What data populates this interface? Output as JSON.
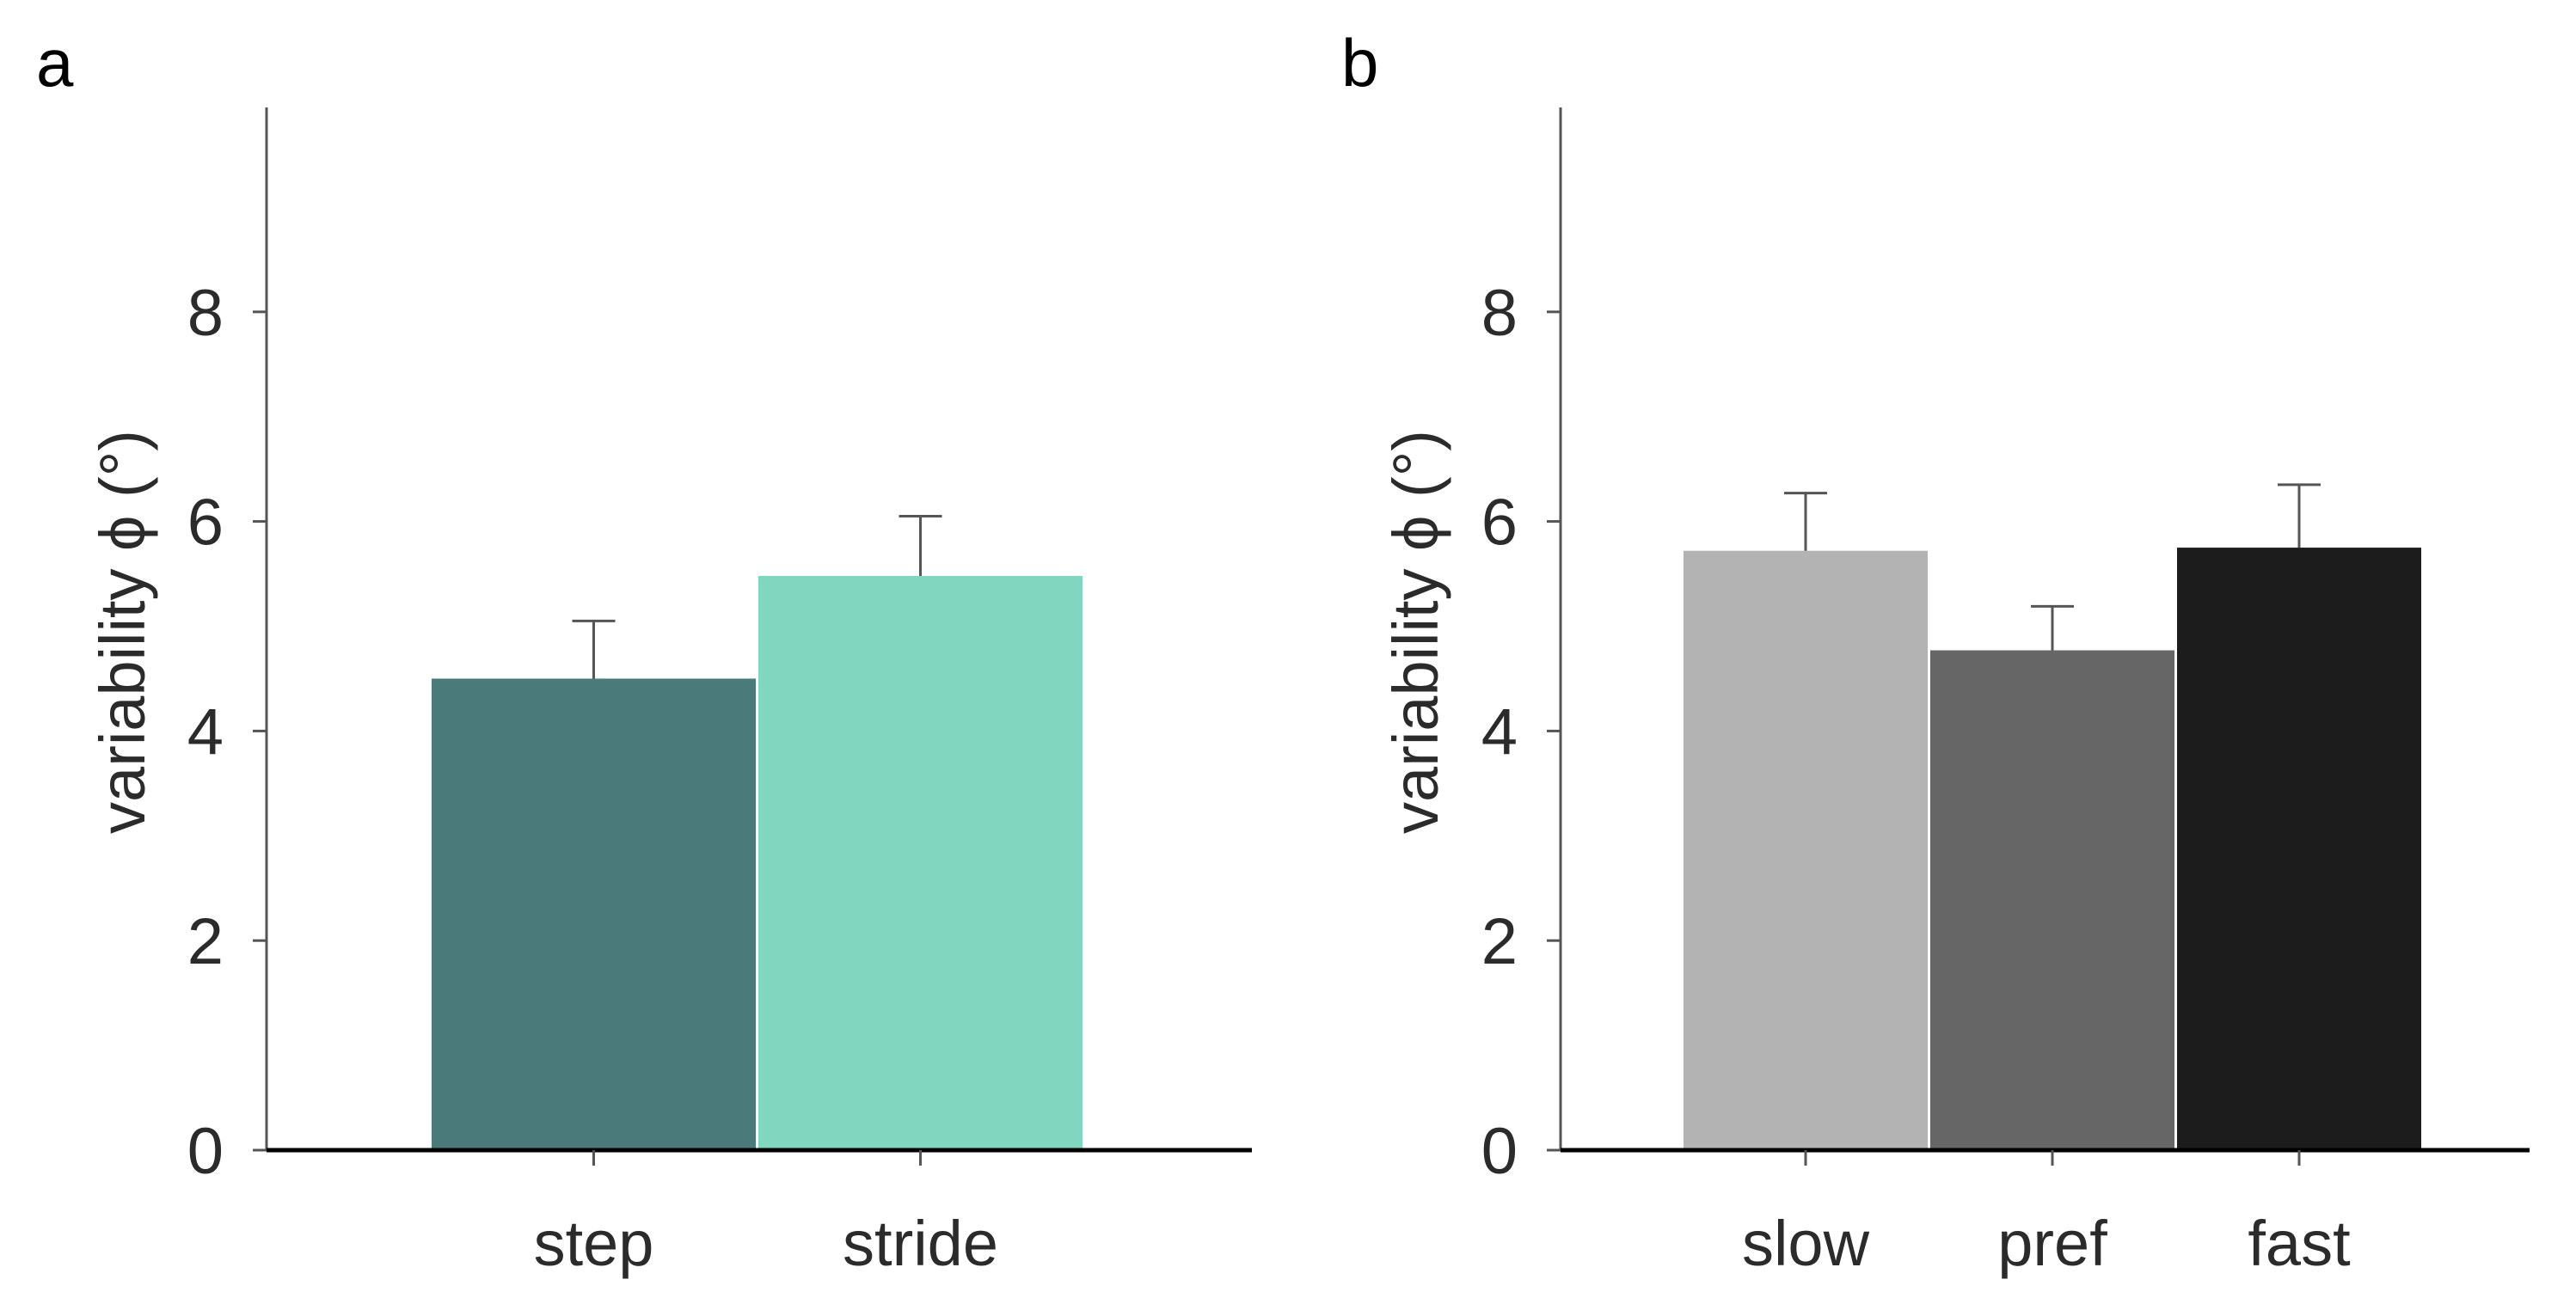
{
  "panels": [
    {
      "panel_label": "a",
      "chart_data": {
        "type": "bar",
        "categories": [
          "step",
          "stride"
        ],
        "values": [
          4.5,
          5.48
        ],
        "errors": [
          0.55,
          0.57
        ],
        "bar_colors": [
          "#4a7a7a",
          "#80d6bf"
        ],
        "ylabel": "variability ϕ (°)",
        "ylim": [
          0,
          10
        ],
        "yticks": [
          0,
          2,
          4,
          6,
          8
        ],
        "grid": false,
        "legend": "none"
      }
    },
    {
      "panel_label": "b",
      "chart_data": {
        "type": "bar",
        "categories": [
          "slow",
          "pref",
          "fast"
        ],
        "values": [
          5.72,
          4.77,
          5.75
        ],
        "errors": [
          0.55,
          0.42,
          0.6
        ],
        "bar_colors": [
          "#b3b3b3",
          "#666666",
          "#1c1c1c"
        ],
        "ylabel": "variability ϕ (°)",
        "ylim": [
          0,
          10
        ],
        "yticks": [
          0,
          2,
          4,
          6,
          8
        ],
        "grid": false,
        "legend": "none"
      }
    }
  ]
}
